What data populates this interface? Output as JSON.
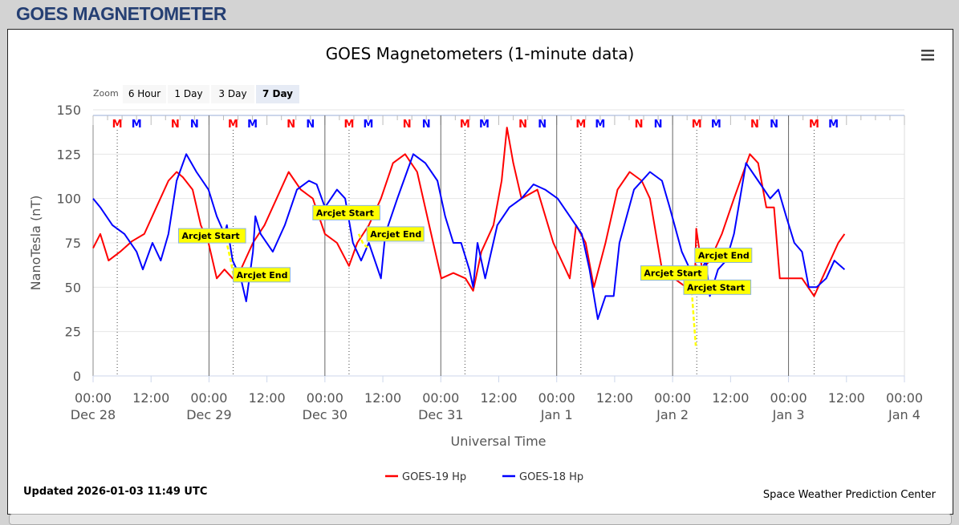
{
  "page_header": "GOES MAGNETOMETER",
  "zoom": {
    "label": "Zoom",
    "buttons": [
      "6 Hour",
      "1 Day",
      "3 Day",
      "7 Day"
    ],
    "selected": "7 Day"
  },
  "menu_icon": "hamburger-menu-icon",
  "updated": "Updated 2026-01-03 11:49 UTC",
  "credit": "Space Weather Prediction Center",
  "colors": {
    "goes19": "#ff0000",
    "goes18": "#0000ff",
    "arcjet": "#ffff00",
    "header": "#253f73"
  },
  "chart_data": {
    "type": "line",
    "title": "GOES Magnetometers (1-minute data)",
    "xlabel": "Universal Time",
    "ylabel": "NanoTesla (nT)",
    "x_units": "hours since Dec 28 00:00 UTC",
    "xlim": [
      0,
      168
    ],
    "ylim": [
      0,
      150
    ],
    "yticks": [
      0,
      25,
      50,
      75,
      100,
      125,
      150
    ],
    "xticks": [
      {
        "h": 0,
        "t": "00:00",
        "d": "Dec 28"
      },
      {
        "h": 12,
        "t": "12:00",
        "d": ""
      },
      {
        "h": 24,
        "t": "00:00",
        "d": "Dec 29"
      },
      {
        "h": 36,
        "t": "12:00",
        "d": ""
      },
      {
        "h": 48,
        "t": "00:00",
        "d": "Dec 30"
      },
      {
        "h": 60,
        "t": "12:00",
        "d": ""
      },
      {
        "h": 72,
        "t": "00:00",
        "d": "Dec 31"
      },
      {
        "h": 84,
        "t": "12:00",
        "d": ""
      },
      {
        "h": 96,
        "t": "00:00",
        "d": "Jan 1"
      },
      {
        "h": 108,
        "t": "12:00",
        "d": ""
      },
      {
        "h": 120,
        "t": "00:00",
        "d": "Jan 2"
      },
      {
        "h": 132,
        "t": "12:00",
        "d": ""
      },
      {
        "h": 144,
        "t": "00:00",
        "d": "Jan 3"
      },
      {
        "h": 156,
        "t": "12:00",
        "d": ""
      },
      {
        "h": 168,
        "t": "00:00",
        "d": "Jan 4"
      }
    ],
    "grid": true,
    "legend_position": "bottom-center",
    "series": [
      {
        "name": "GOES-19 Hp",
        "color": "#ff0000",
        "points": [
          [
            0,
            72
          ],
          [
            1.5,
            80
          ],
          [
            3.2,
            65
          ],
          [
            5.6,
            70
          ],
          [
            8.1,
            76
          ],
          [
            10.6,
            80
          ],
          [
            13.1,
            95
          ],
          [
            15.6,
            110
          ],
          [
            17.3,
            115
          ],
          [
            18.6,
            112
          ],
          [
            20.6,
            105
          ],
          [
            22.3,
            85
          ],
          [
            23.9,
            75
          ],
          [
            25.6,
            55
          ],
          [
            27.2,
            60
          ],
          [
            28.9,
            55
          ],
          [
            30.6,
            60
          ],
          [
            33.1,
            75
          ],
          [
            35.5,
            85
          ],
          [
            38,
            100
          ],
          [
            40.5,
            115
          ],
          [
            43,
            105
          ],
          [
            45.5,
            100
          ],
          [
            48,
            80
          ],
          [
            50.5,
            75
          ],
          [
            53,
            62
          ],
          [
            54.7,
            75
          ],
          [
            57.1,
            85
          ],
          [
            59.6,
            100
          ],
          [
            62.1,
            120
          ],
          [
            64.6,
            125
          ],
          [
            67.1,
            115
          ],
          [
            69.6,
            85
          ],
          [
            72.1,
            55
          ],
          [
            74.6,
            58
          ],
          [
            77.1,
            55
          ],
          [
            78.7,
            48
          ],
          [
            80.4,
            70
          ],
          [
            82.9,
            85
          ],
          [
            84.6,
            110
          ],
          [
            85.7,
            140
          ],
          [
            87,
            120
          ],
          [
            88.7,
            100
          ],
          [
            92,
            105
          ],
          [
            95.3,
            75
          ],
          [
            98.7,
            55
          ],
          [
            100,
            85
          ],
          [
            102,
            75
          ],
          [
            103.7,
            50
          ],
          [
            106.1,
            75
          ],
          [
            108.6,
            105
          ],
          [
            111.1,
            115
          ],
          [
            113.6,
            110
          ],
          [
            115.3,
            100
          ],
          [
            117.8,
            60
          ],
          [
            120.3,
            55
          ],
          [
            122.8,
            50
          ],
          [
            124.6,
            52
          ],
          [
            124.9,
            83
          ],
          [
            126.1,
            60
          ],
          [
            127.7,
            65
          ],
          [
            130.2,
            80
          ],
          [
            132.7,
            100
          ],
          [
            136,
            125
          ],
          [
            137.7,
            120
          ],
          [
            139.4,
            95
          ],
          [
            141,
            95
          ],
          [
            142.2,
            55
          ],
          [
            144.4,
            55
          ],
          [
            146.8,
            55
          ],
          [
            149.3,
            45
          ],
          [
            151.8,
            60
          ],
          [
            154.3,
            75
          ],
          [
            155.6,
            80
          ]
        ]
      },
      {
        "name": "GOES-18 Hp",
        "color": "#0000ff",
        "points": [
          [
            0,
            100
          ],
          [
            1.5,
            95
          ],
          [
            4,
            85
          ],
          [
            6.5,
            80
          ],
          [
            9,
            70
          ],
          [
            10.3,
            60
          ],
          [
            12.3,
            75
          ],
          [
            14,
            65
          ],
          [
            15.6,
            80
          ],
          [
            17.3,
            110
          ],
          [
            19.3,
            125
          ],
          [
            21.4,
            115
          ],
          [
            23.9,
            105
          ],
          [
            25.6,
            90
          ],
          [
            27.2,
            80
          ],
          [
            27.7,
            85
          ],
          [
            28.9,
            65
          ],
          [
            30.6,
            55
          ],
          [
            31.7,
            42
          ],
          [
            33.1,
            70
          ],
          [
            33.6,
            90
          ],
          [
            34.7,
            80
          ],
          [
            37.2,
            70
          ],
          [
            39.7,
            85
          ],
          [
            42.2,
            105
          ],
          [
            44.7,
            110
          ],
          [
            46.3,
            108
          ],
          [
            48,
            95
          ],
          [
            50.5,
            105
          ],
          [
            52.2,
            100
          ],
          [
            53.8,
            75
          ],
          [
            55.5,
            65
          ],
          [
            57.1,
            75
          ],
          [
            59.6,
            55
          ],
          [
            60.5,
            80
          ],
          [
            63,
            100
          ],
          [
            66.3,
            125
          ],
          [
            68.8,
            120
          ],
          [
            71.3,
            110
          ],
          [
            72.9,
            90
          ],
          [
            74.6,
            75
          ],
          [
            76.2,
            75
          ],
          [
            77.9,
            60
          ],
          [
            78.7,
            50
          ],
          [
            79.6,
            75
          ],
          [
            81.2,
            55
          ],
          [
            83.7,
            85
          ],
          [
            86.2,
            95
          ],
          [
            88.7,
            100
          ],
          [
            91.2,
            108
          ],
          [
            93.6,
            105
          ],
          [
            96.2,
            100
          ],
          [
            98.7,
            90
          ],
          [
            101.2,
            80
          ],
          [
            102.8,
            60
          ],
          [
            104.5,
            32
          ],
          [
            106.1,
            45
          ],
          [
            107.8,
            45
          ],
          [
            109,
            75
          ],
          [
            112,
            105
          ],
          [
            115.3,
            115
          ],
          [
            117.8,
            110
          ],
          [
            119.4,
            95
          ],
          [
            121.9,
            70
          ],
          [
            123.6,
            60
          ],
          [
            125.2,
            55
          ],
          [
            126.9,
            65
          ],
          [
            127.7,
            45
          ],
          [
            129.4,
            60
          ],
          [
            131.1,
            65
          ],
          [
            132.7,
            80
          ],
          [
            135.2,
            120
          ],
          [
            137.7,
            110
          ],
          [
            140.2,
            100
          ],
          [
            141.9,
            105
          ],
          [
            143.5,
            90
          ],
          [
            145.2,
            75
          ],
          [
            146.8,
            70
          ],
          [
            148.2,
            50
          ],
          [
            149.8,
            50
          ],
          [
            151.8,
            55
          ],
          [
            153.5,
            65
          ],
          [
            155.6,
            60
          ]
        ]
      }
    ],
    "arcjet_segments": [
      [
        [
          27.5,
          77
        ],
        [
          28.5,
          65
        ],
        [
          29.2,
          55
        ]
      ],
      [
        [
          55,
          80
        ],
        [
          56,
          74
        ],
        [
          57.2,
          72
        ]
      ],
      [
        [
          123.8,
          55
        ],
        [
          124.3,
          35
        ],
        [
          124.8,
          17
        ]
      ]
    ],
    "annotations": [
      {
        "text": "Arcjet Start",
        "h": 17.7,
        "v": 79
      },
      {
        "text": "Arcjet End",
        "h": 29,
        "v": 57
      },
      {
        "text": "Arcjet Start",
        "h": 45.5,
        "v": 92
      },
      {
        "text": "Arcjet End",
        "h": 56.7,
        "v": 80
      },
      {
        "text": "Arcjet Start",
        "h": 113.4,
        "v": 58
      },
      {
        "text": "Arcjet End",
        "h": 124.6,
        "v": 68
      },
      {
        "text": "Arcjet Start",
        "h": 122.3,
        "v": 50
      }
    ],
    "markers": [
      {
        "label": "M",
        "color": "#ff0000",
        "hours": [
          5,
          29,
          53,
          77,
          101,
          125,
          149.3
        ]
      },
      {
        "label": "M",
        "color": "#0000ff",
        "hours": [
          9,
          33,
          57,
          81,
          105,
          129,
          153.3
        ]
      },
      {
        "label": "N",
        "color": "#ff0000",
        "hours": [
          17,
          41,
          65,
          89,
          113,
          137
        ]
      },
      {
        "label": "N",
        "color": "#0000ff",
        "hours": [
          21,
          45,
          69,
          93,
          117,
          141
        ]
      }
    ]
  }
}
